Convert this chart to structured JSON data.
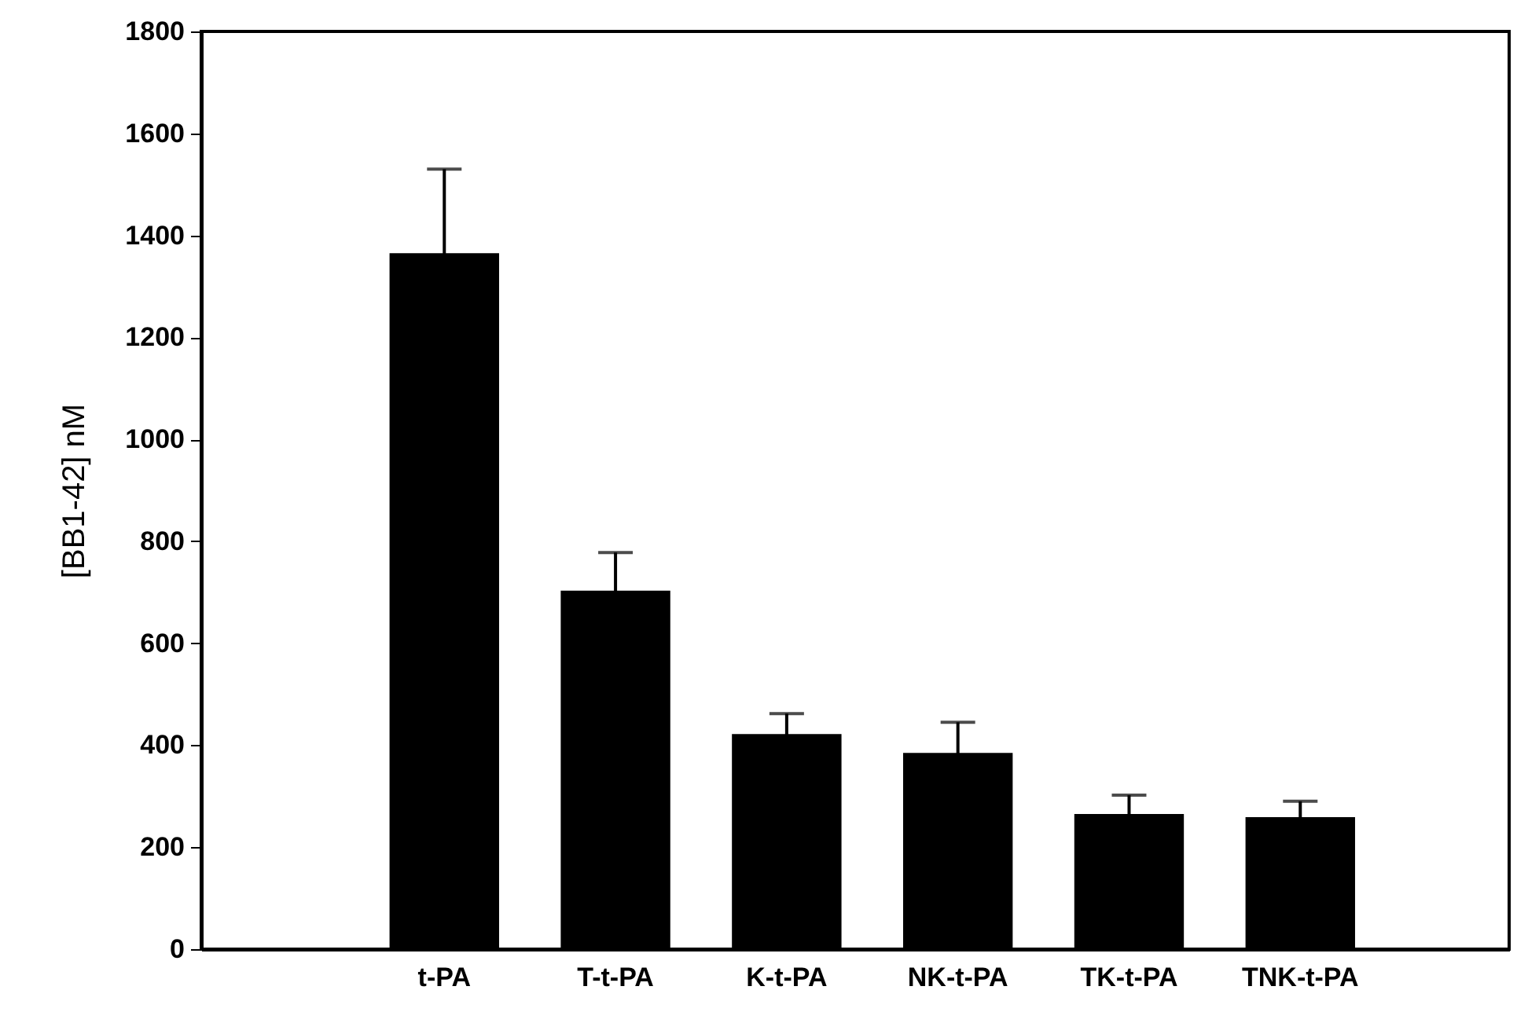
{
  "chart_data": {
    "type": "bar",
    "ylabel": "[BB1-42] nM",
    "categories": [
      "t-PA",
      "T-t-PA",
      "K-t-PA",
      "NK-t-PA",
      "TK-t-PA",
      "TNK-t-PA"
    ],
    "values": [
      1365,
      703,
      422,
      385,
      265,
      259
    ],
    "errors": [
      165,
      75,
      40,
      60,
      37,
      31
    ],
    "color": "#000000",
    "ylim": [
      0,
      1800
    ],
    "yticks": [
      0,
      200,
      400,
      600,
      800,
      1000,
      1200,
      1400,
      1600,
      1800
    ],
    "grid": false
  }
}
